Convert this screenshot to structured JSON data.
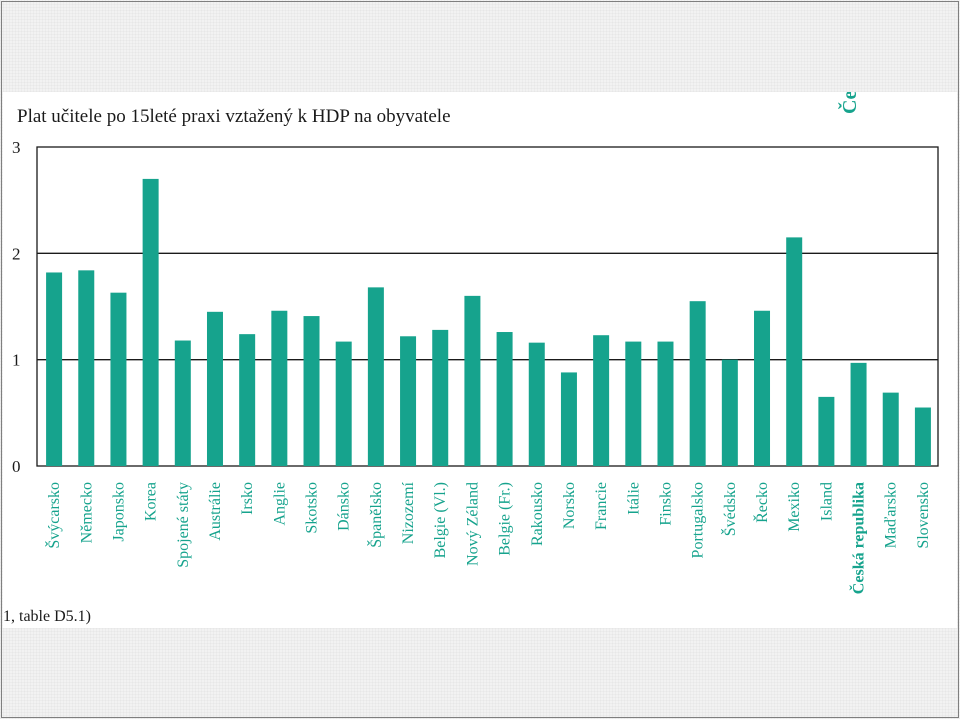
{
  "slide": {
    "corner_text": "Če",
    "footnote": "1, table D5.1)"
  },
  "colors": {
    "bar": "#16a38d",
    "label": "#16a38d",
    "axis": "#1a1a1a"
  },
  "chart_data": {
    "type": "bar",
    "title": "Plat učitele po 15leté praxi vztažený k HDP na obyvatele",
    "xlabel": "",
    "ylabel": "",
    "ylim": [
      0,
      3
    ],
    "yticks": [
      "0",
      "1",
      "2",
      "3"
    ],
    "grid": true,
    "categories": [
      "Švýcarsko",
      "Německo",
      "Japonsko",
      "Korea",
      "Spojené státy",
      "Austrálie",
      "Irsko",
      "Anglie",
      "Skotsko",
      "Dánsko",
      "Španělsko",
      "Nizozemí",
      "Belgie (Vl.)",
      "Nový Zéland",
      "Belgie (Fr.)",
      "Rakousko",
      "Norsko",
      "Francie",
      "Itálie",
      "Finsko",
      "Portugalsko",
      "Švédsko",
      "Řecko",
      "Mexiko",
      "Island",
      "Česká republika",
      "Maďarsko",
      "Slovensko"
    ],
    "values": [
      1.82,
      1.84,
      1.63,
      2.7,
      1.18,
      1.45,
      1.24,
      1.46,
      1.41,
      1.17,
      1.68,
      1.22,
      1.28,
      1.6,
      1.26,
      1.16,
      0.88,
      1.23,
      1.17,
      1.17,
      1.55,
      1.0,
      1.46,
      2.15,
      0.65,
      0.97,
      0.69,
      0.55
    ],
    "highlight": "Česká republika"
  }
}
